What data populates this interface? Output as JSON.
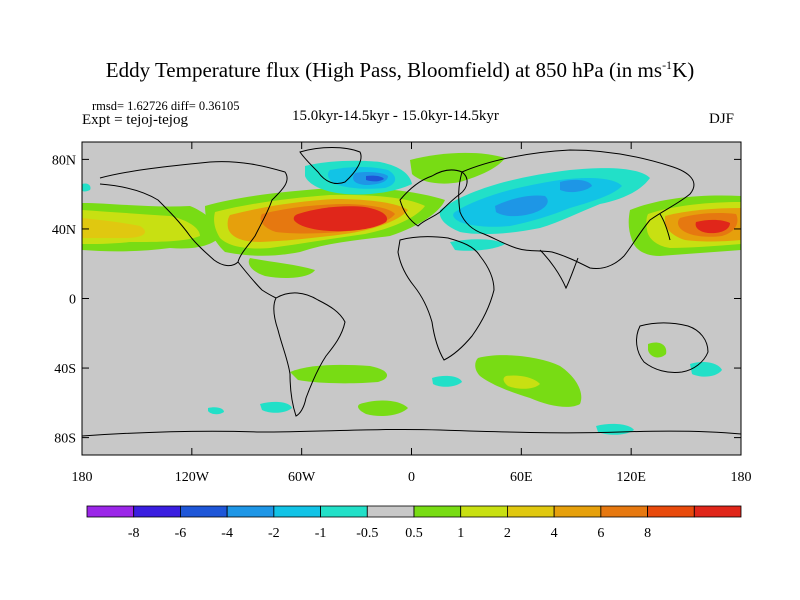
{
  "title": {
    "main": "Eddy Temperature flux (High Pass, Bloomfield) at 850 hPa (in ms",
    "sup": "-1",
    "tail": "K)"
  },
  "stats": "rmsd= 1.62726 diff= 0.36105",
  "experiment": "Expt = tejoj-tejog",
  "period": "15.0kyr-14.5kyr - 15.0kyr-14.5kyr",
  "season": "DJF",
  "map": {
    "lon_range": [
      -180,
      180
    ],
    "lat_range": [
      -90,
      90
    ],
    "land_color": "#c8c8c8",
    "y_axis": {
      "ticks": [
        {
          "lat": 80,
          "label": "80N"
        },
        {
          "lat": 40,
          "label": "40N"
        },
        {
          "lat": 0,
          "label": "0"
        },
        {
          "lat": -40,
          "label": "40S"
        },
        {
          "lat": -80,
          "label": "80S"
        }
      ]
    },
    "x_axis": {
      "ticks": [
        {
          "lon": -180,
          "label": "180"
        },
        {
          "lon": -120,
          "label": "120W"
        },
        {
          "lon": -60,
          "label": "60W"
        },
        {
          "lon": 0,
          "label": "0"
        },
        {
          "lon": 60,
          "label": "60E"
        },
        {
          "lon": 120,
          "label": "120E"
        },
        {
          "lon": 180,
          "label": "180"
        }
      ]
    }
  },
  "colorbar": {
    "colors": [
      "#9b26e8",
      "#3a1ee0",
      "#1e56d8",
      "#1e96e6",
      "#12c3e6",
      "#22e0c8",
      "#c8c8c8",
      "#78dc14",
      "#c8e012",
      "#e0c810",
      "#e6a00c",
      "#e67810",
      "#e84a0c",
      "#e0261a"
    ],
    "labels": [
      "-8",
      "-6",
      "-4",
      "-2",
      "-1",
      "-0.5",
      "0.5",
      "1",
      "2",
      "4",
      "6",
      "8"
    ]
  }
}
